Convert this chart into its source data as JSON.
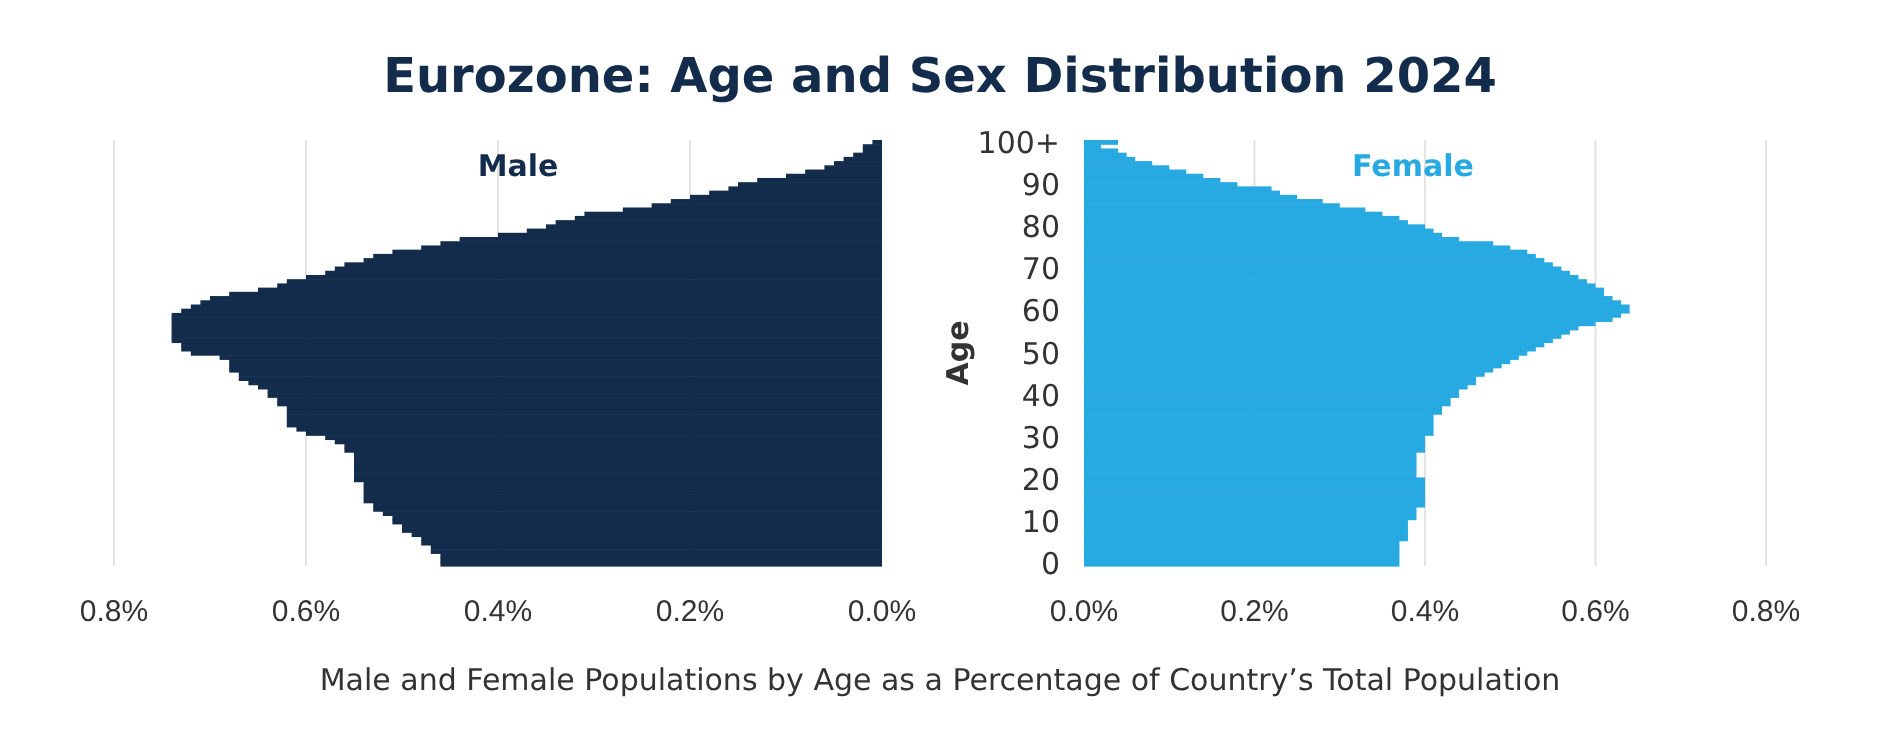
{
  "chart_data": [
    {
      "type": "bar",
      "orientation": "horizontal",
      "title": "Eurozone: Age and Sex Distribution 2024",
      "categories": [
        null,
        null,
        null,
        null,
        null,
        null,
        null,
        null,
        null,
        null,
        null,
        null,
        null,
        null,
        null,
        null,
        null,
        null,
        null,
        null,
        null,
        null,
        null,
        null,
        null,
        null,
        null,
        null,
        null,
        null,
        null,
        null,
        null,
        null,
        null,
        null,
        null,
        null,
        null,
        null,
        null,
        null,
        null,
        null,
        null,
        null,
        null,
        null,
        null,
        null,
        null,
        null,
        null,
        null,
        null,
        null,
        null,
        null,
        null,
        null,
        null,
        null,
        null,
        null,
        null,
        null,
        null,
        null,
        null,
        null,
        null,
        null,
        null,
        null,
        null,
        null,
        null,
        null,
        null,
        null,
        null,
        null,
        null,
        null,
        null,
        null,
        null,
        null,
        null,
        null,
        null,
        null,
        null,
        null,
        null,
        null,
        null,
        null,
        null,
        null,
        null
      ],
      "series": [
        {
          "name": "Male",
          "color": "#132c4b",
          "values": [
            0.01,
            0.02,
            0.02,
            0.03,
            0.04,
            0.05,
            0.06,
            0.08,
            0.1,
            0.13,
            0.15,
            0.16,
            0.18,
            0.2,
            0.22,
            0.24,
            0.27,
            0.31,
            0.32,
            0.34,
            0.35,
            0.37,
            0.4,
            0.44,
            0.46,
            0.48,
            0.51,
            0.53,
            0.54,
            0.56,
            0.57,
            0.58,
            0.6,
            0.62,
            0.63,
            0.65,
            0.68,
            0.7,
            0.71,
            0.72,
            0.73,
            0.74,
            0.74,
            0.74,
            0.74,
            0.74,
            0.74,
            0.74,
            0.73,
            0.73,
            0.72,
            0.69,
            0.68,
            0.68,
            0.68,
            0.67,
            0.67,
            0.66,
            0.65,
            0.64,
            0.64,
            0.63,
            0.63,
            0.62,
            0.62,
            0.62,
            0.62,
            0.62,
            0.61,
            0.6,
            0.58,
            0.57,
            0.56,
            0.56,
            0.55,
            0.55,
            0.55,
            0.55,
            0.55,
            0.55,
            0.55,
            0.54,
            0.54,
            0.54,
            0.54,
            0.54,
            0.53,
            0.53,
            0.52,
            0.51,
            0.51,
            0.5,
            0.5,
            0.49,
            0.48,
            0.48,
            0.47,
            0.47,
            0.46,
            0.46,
            0.46
          ]
        }
      ],
      "xlim": [
        0.8,
        0
      ],
      "xticks": [
        {
          "value": 0.8,
          "label": "0.8%"
        },
        {
          "value": 0.6,
          "label": "0.6%"
        },
        {
          "value": 0.4,
          "label": "0.4%"
        },
        {
          "value": 0.2,
          "label": "0.2%"
        },
        {
          "value": 0,
          "label": "0.0%"
        }
      ],
      "grid": "x",
      "tick_labels": "x"
    },
    {
      "type": "bar",
      "orientation": "horizontal",
      "ylabel": "Age",
      "xlabel": "Male and Female Populations by Age as a Percentage of Country’s Total Population",
      "categories": [
        "100+",
        null,
        null,
        null,
        null,
        null,
        null,
        null,
        null,
        null,
        "90",
        null,
        null,
        null,
        null,
        null,
        null,
        null,
        null,
        null,
        "80",
        null,
        null,
        null,
        null,
        null,
        null,
        null,
        null,
        null,
        "70",
        null,
        null,
        null,
        null,
        null,
        null,
        null,
        null,
        null,
        "60",
        null,
        null,
        null,
        null,
        null,
        null,
        null,
        null,
        null,
        "50",
        null,
        null,
        null,
        null,
        null,
        null,
        null,
        null,
        null,
        "40",
        null,
        null,
        null,
        null,
        null,
        null,
        null,
        null,
        null,
        "30",
        null,
        null,
        null,
        null,
        null,
        null,
        null,
        null,
        null,
        "20",
        null,
        null,
        null,
        null,
        null,
        null,
        null,
        null,
        null,
        "10",
        null,
        null,
        null,
        null,
        null,
        null,
        null,
        null,
        null,
        "0"
      ],
      "series": [
        {
          "name": "Female",
          "color": "#27a9e1",
          "values": [
            0.04,
            0.02,
            0.04,
            0.05,
            0.06,
            0.08,
            0.1,
            0.12,
            0.14,
            0.16,
            0.18,
            0.22,
            0.23,
            0.25,
            0.28,
            0.3,
            0.33,
            0.35,
            0.37,
            0.38,
            0.4,
            0.41,
            0.42,
            0.44,
            0.48,
            0.5,
            0.52,
            0.53,
            0.54,
            0.55,
            0.56,
            0.57,
            0.58,
            0.59,
            0.6,
            0.61,
            0.61,
            0.62,
            0.63,
            0.64,
            0.64,
            0.63,
            0.62,
            0.6,
            0.58,
            0.57,
            0.56,
            0.55,
            0.54,
            0.53,
            0.52,
            0.51,
            0.5,
            0.49,
            0.48,
            0.47,
            0.46,
            0.46,
            0.45,
            0.44,
            0.44,
            0.43,
            0.43,
            0.42,
            0.42,
            0.41,
            0.41,
            0.41,
            0.41,
            0.41,
            0.4,
            0.4,
            0.4,
            0.4,
            0.39,
            0.39,
            0.39,
            0.39,
            0.39,
            0.39,
            0.4,
            0.4,
            0.4,
            0.4,
            0.4,
            0.4,
            0.4,
            0.39,
            0.39,
            0.39,
            0.38,
            0.38,
            0.38,
            0.38,
            0.38,
            0.37,
            0.37,
            0.37,
            0.37,
            0.37,
            0.37
          ]
        }
      ],
      "xlim": [
        0,
        0.8
      ],
      "xticks": [
        {
          "value": 0,
          "label": "0.0%"
        },
        {
          "value": 0.2,
          "label": "0.2%"
        },
        {
          "value": 0.4,
          "label": "0.4%"
        },
        {
          "value": 0.6,
          "label": "0.6%"
        },
        {
          "value": 0.8,
          "label": "0.8%"
        }
      ],
      "grid": "x"
    }
  ]
}
